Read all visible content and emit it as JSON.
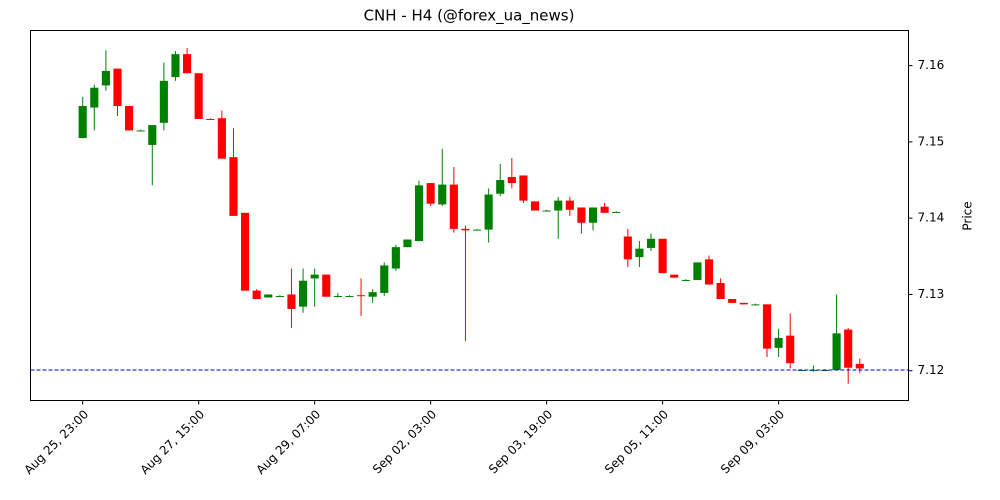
{
  "chart_data": {
    "type": "candlestick",
    "title": "CNH - H4 (@forex_ua_news)",
    "y_label": "Price",
    "up_color": "#008000",
    "down_color": "#ff0000",
    "hline": 7.1201,
    "hline_color": "#0000ff",
    "xlim": [
      -4.5,
      71.2
    ],
    "ylim": [
      7.1161,
      7.1646
    ],
    "xticks": [
      {
        "value": 0,
        "label": "Aug 25, 23:00"
      },
      {
        "value": 10,
        "label": "Aug 27, 15:00"
      },
      {
        "value": 20,
        "label": "Aug 29, 07:00"
      },
      {
        "value": 30,
        "label": "Sep 02, 03:00"
      },
      {
        "value": 40,
        "label": "Sep 03, 19:00"
      },
      {
        "value": 50,
        "label": "Sep 05, 11:00"
      },
      {
        "value": 60,
        "label": "Sep 09, 03:00"
      }
    ],
    "yticks": [
      {
        "value": 7.12,
        "label": "7.12"
      },
      {
        "value": 7.13,
        "label": "7.13"
      },
      {
        "value": 7.14,
        "label": "7.14"
      },
      {
        "value": 7.15,
        "label": "7.15"
      },
      {
        "value": 7.16,
        "label": "7.16"
      }
    ],
    "open": [
      7.1505,
      7.1545,
      7.1574,
      7.1596,
      7.1547,
      7.1515,
      7.1496,
      7.1525,
      7.1585,
      7.1615,
      7.159,
      7.153,
      7.1531,
      7.148,
      7.1407,
      7.1305,
      7.1296,
      7.1298,
      7.13,
      7.1284,
      7.1321,
      7.1326,
      7.1297,
      7.1298,
      7.1299,
      7.1297,
      7.1302,
      7.1334,
      7.1362,
      7.137,
      7.1446,
      7.1418,
      7.1444,
      7.1386,
      7.1385,
      7.1385,
      7.1432,
      7.1454,
      7.1456,
      7.1422,
      7.141,
      7.141,
      7.1423,
      7.1414,
      7.1394,
      7.1415,
      7.1408,
      7.1376,
      7.1349,
      7.1361,
      7.1373,
      7.1326,
      7.1319,
      7.1319,
      7.1346,
      7.1315,
      7.1294,
      7.1289,
      7.1287,
      7.1287,
      7.123,
      7.1246,
      7.1201,
      7.1201,
      7.1201,
      7.1201,
      7.1254,
      7.1209
    ],
    "high": [
      7.1559,
      7.1575,
      7.162,
      7.1596,
      7.1547,
      7.1516,
      7.1522,
      7.1604,
      7.1619,
      7.1623,
      7.159,
      7.1531,
      7.1541,
      7.1518,
      7.1407,
      7.1307,
      7.13,
      7.1299,
      7.1334,
      7.1334,
      7.1334,
      7.1326,
      7.1302,
      7.1299,
      7.1321,
      7.1307,
      7.1342,
      7.1365,
      7.1372,
      7.1449,
      7.1446,
      7.1491,
      7.1467,
      7.139,
      7.1386,
      7.1439,
      7.1471,
      7.1479,
      7.1456,
      7.1422,
      7.1411,
      7.1428,
      7.1428,
      7.1414,
      7.1414,
      7.142,
      7.1409,
      7.1386,
      7.137,
      7.138,
      7.1373,
      7.1326,
      7.132,
      7.1342,
      7.1351,
      7.1321,
      7.1294,
      7.1289,
      7.1288,
      7.1287,
      7.1255,
      7.1275,
      7.1202,
      7.1207,
      7.1202,
      7.13,
      7.1256,
      7.1216
    ],
    "low": [
      7.1505,
      7.1515,
      7.1567,
      7.1534,
      7.1515,
      7.1514,
      7.1443,
      7.1515,
      7.158,
      7.159,
      7.153,
      7.1529,
      7.1478,
      7.1403,
      7.1305,
      7.1294,
      7.1296,
      7.1297,
      7.1256,
      7.1276,
      7.1284,
      7.1297,
      7.1296,
      7.1297,
      7.1272,
      7.1289,
      7.1298,
      7.1331,
      7.1362,
      7.137,
      7.1416,
      7.1416,
      7.1381,
      7.1239,
      7.1384,
      7.1368,
      7.1429,
      7.1439,
      7.142,
      7.141,
      7.1409,
      7.1373,
      7.1403,
      7.138,
      7.1384,
      7.1407,
      7.1407,
      7.1336,
      7.1336,
      7.1357,
      7.1328,
      7.1322,
      7.1318,
      7.1319,
      7.1313,
      7.1294,
      7.1289,
      7.1287,
      7.1286,
      7.1218,
      7.1218,
      7.1203,
      7.12,
      7.1199,
      7.12,
      7.1201,
      7.1183,
      7.1197
    ],
    "close": [
      7.1547,
      7.1571,
      7.1593,
      7.1547,
      7.1515,
      7.1515,
      7.1522,
      7.158,
      7.1615,
      7.159,
      7.153,
      7.1529,
      7.1478,
      7.1403,
      7.1305,
      7.1294,
      7.13,
      7.1298,
      7.1281,
      7.1318,
      7.1326,
      7.1297,
      7.1298,
      7.1298,
      7.1298,
      7.1303,
      7.1338,
      7.1362,
      7.1372,
      7.1443,
      7.1419,
      7.1444,
      7.1386,
      7.1384,
      7.1385,
      7.1431,
      7.145,
      7.1446,
      7.1423,
      7.141,
      7.141,
      7.1423,
      7.1411,
      7.1394,
      7.1414,
      7.1407,
      7.1408,
      7.1346,
      7.136,
      7.1373,
      7.1328,
      7.1322,
      7.1319,
      7.1342,
      7.1313,
      7.1294,
      7.1289,
      7.1287,
      7.1287,
      7.1229,
      7.1243,
      7.121,
      7.1201,
      7.1201,
      7.1201,
      7.1249,
      7.1204,
      7.1203
    ]
  }
}
